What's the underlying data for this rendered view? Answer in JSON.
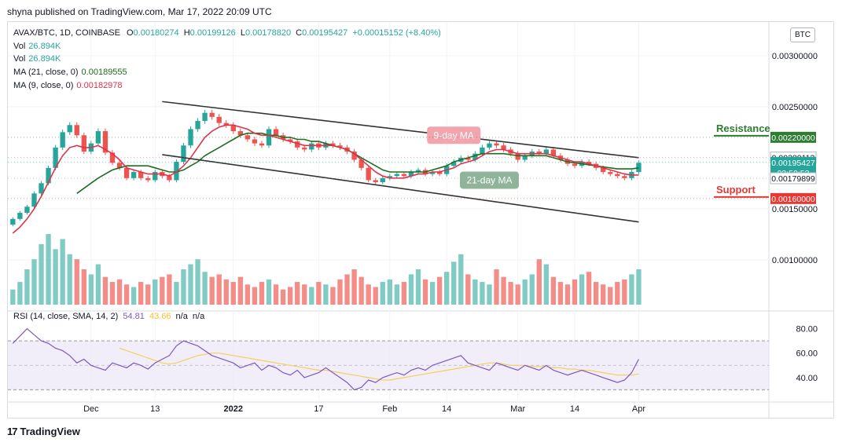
{
  "header": {
    "published": "shyna published on TradingView.com, Mar 17, 2022 20:09 UTC"
  },
  "symbol": {
    "name": "AVAX/BTC, 1D, COINBASE",
    "o_label": "O",
    "o": "0.00180274",
    "h_label": "H",
    "h": "0.00199126",
    "l_label": "L",
    "l": "0.00178820",
    "c_label": "C",
    "c": "0.00195427",
    "change": "+0.00015152 (+8.40%)"
  },
  "legend": [
    {
      "label": "Vol",
      "value": "26.894K",
      "color": "#26a69a"
    },
    {
      "label": "Vol",
      "value": "26.894K",
      "color": "#26a69a"
    },
    {
      "label": "MA (21, close, 0)",
      "value": "0.00189555",
      "color": "#1e6e1e"
    },
    {
      "label": "MA (9, close, 0)",
      "value": "0.00182978",
      "color": "#e0324b"
    }
  ],
  "rsi_legend": {
    "label": "RSI (14, close, SMA, 14, 2)",
    "rsi": "54.81",
    "sma": "43.66",
    "na1": "n/a",
    "na2": "n/a"
  },
  "currency_button": "BTC",
  "footer": {
    "brand": "TradingView",
    "mark": "17"
  },
  "chart_data": {
    "type": "candlestick",
    "title": "AVAX/BTC, 1D, COINBASE",
    "y_ticks": [
      "0.00300000",
      "0.00250000",
      "0.00150000",
      "0.00100000"
    ],
    "y_tick_values": [
      0.003,
      0.0025,
      0.0015,
      0.001
    ],
    "ylim": [
      0.00056,
      0.00333
    ],
    "x_ticks": [
      "Dec",
      "13",
      "2022",
      "17",
      "Feb",
      "14",
      "Mar",
      "14",
      "Apr"
    ],
    "x_tick_bars": [
      11,
      20,
      31,
      43,
      53,
      61,
      71,
      79,
      88
    ],
    "closes": [
      0.0014,
      0.00146,
      0.00152,
      0.00165,
      0.00175,
      0.0019,
      0.0021,
      0.00225,
      0.00232,
      0.00222,
      0.00206,
      0.00214,
      0.00226,
      0.00205,
      0.00195,
      0.0019,
      0.0018,
      0.00186,
      0.0018,
      0.00178,
      0.00186,
      0.00182,
      0.00178,
      0.00196,
      0.00212,
      0.00228,
      0.00236,
      0.00244,
      0.0024,
      0.00234,
      0.00232,
      0.00226,
      0.00222,
      0.00218,
      0.00214,
      0.00212,
      0.00228,
      0.00222,
      0.00218,
      0.00216,
      0.0021,
      0.00208,
      0.00214,
      0.0021,
      0.00214,
      0.00212,
      0.0021,
      0.00206,
      0.00198,
      0.0019,
      0.00178,
      0.00176,
      0.0018,
      0.00182,
      0.00184,
      0.00182,
      0.00186,
      0.00188,
      0.00184,
      0.00186,
      0.00184,
      0.00192,
      0.00196,
      0.002,
      0.00198,
      0.00204,
      0.0021,
      0.00214,
      0.00212,
      0.00208,
      0.00204,
      0.00198,
      0.00202,
      0.00206,
      0.00204,
      0.00208,
      0.00202,
      0.00198,
      0.00194,
      0.00192,
      0.00196,
      0.00194,
      0.0019,
      0.00186,
      0.00184,
      0.00182,
      0.0018,
      0.00186,
      0.00195
    ],
    "volumes": [
      6,
      9,
      14,
      18,
      24,
      28,
      22,
      26,
      20,
      18,
      14,
      12,
      16,
      11,
      9,
      10,
      8,
      7,
      9,
      8,
      10,
      11,
      12,
      9,
      14,
      16,
      18,
      13,
      11,
      12,
      10,
      9,
      11,
      8,
      7,
      9,
      10,
      8,
      6,
      7,
      9,
      8,
      7,
      9,
      8,
      7,
      10,
      12,
      14,
      11,
      8,
      7,
      9,
      10,
      8,
      9,
      12,
      14,
      10,
      9,
      11,
      13,
      17,
      20,
      12,
      10,
      9,
      8,
      14,
      11,
      9,
      8,
      10,
      12,
      18,
      16,
      11,
      9,
      8,
      10,
      12,
      13,
      9,
      8,
      7,
      9,
      10,
      12,
      14
    ],
    "ma9": [
      0.00126,
      0.00132,
      0.0014,
      0.0015,
      0.00162,
      0.00176,
      0.0019,
      0.00202,
      0.0021,
      0.00212,
      0.0021,
      0.0021,
      0.00212,
      0.00208,
      0.00204,
      0.00198,
      0.0019,
      0.00188,
      0.00186,
      0.00184,
      0.00184,
      0.00184,
      0.00182,
      0.00186,
      0.00192,
      0.002,
      0.0021,
      0.0022,
      0.00226,
      0.0023,
      0.00232,
      0.00232,
      0.0023,
      0.00228,
      0.00224,
      0.00222,
      0.00222,
      0.0022,
      0.00218,
      0.00216,
      0.00214,
      0.00212,
      0.00212,
      0.00212,
      0.00212,
      0.00212,
      0.0021,
      0.00208,
      0.00204,
      0.00198,
      0.00192,
      0.00186,
      0.00182,
      0.0018,
      0.0018,
      0.0018,
      0.00182,
      0.00184,
      0.00184,
      0.00186,
      0.00186,
      0.00188,
      0.0019,
      0.00194,
      0.00196,
      0.00198,
      0.00202,
      0.00206,
      0.00208,
      0.00208,
      0.00206,
      0.00204,
      0.00204,
      0.00204,
      0.00204,
      0.00204,
      0.00202,
      0.002,
      0.00198,
      0.00196,
      0.00196,
      0.00194,
      0.00192,
      0.0019,
      0.00188,
      0.00186,
      0.00184,
      0.00183,
      0.00183
    ],
    "ma21": [
      null,
      null,
      null,
      null,
      null,
      null,
      null,
      null,
      null,
      0.00165,
      0.0017,
      0.00175,
      0.0018,
      0.00184,
      0.00188,
      0.0019,
      0.00192,
      0.00192,
      0.00192,
      0.00192,
      0.0019,
      0.00188,
      0.00186,
      0.00186,
      0.00188,
      0.00192,
      0.00196,
      0.00202,
      0.00206,
      0.0021,
      0.00214,
      0.00218,
      0.00222,
      0.00224,
      0.00224,
      0.00224,
      0.00222,
      0.00222,
      0.0022,
      0.0022,
      0.00218,
      0.00218,
      0.00216,
      0.00216,
      0.00214,
      0.00212,
      0.0021,
      0.00208,
      0.00204,
      0.002,
      0.00196,
      0.00192,
      0.00188,
      0.00186,
      0.00186,
      0.00186,
      0.00186,
      0.00186,
      0.00186,
      0.00188,
      0.0019,
      0.00192,
      0.00196,
      0.00198,
      0.002,
      0.00202,
      0.00204,
      0.00204,
      0.00204,
      0.00204,
      0.00203,
      0.00202,
      0.00202,
      0.00202,
      0.00202,
      0.00202,
      0.002,
      0.00198,
      0.00196,
      0.00195,
      0.00194,
      0.00193,
      0.00192,
      0.00191,
      0.0019,
      0.00189,
      0.00189,
      0.00189,
      0.0019
    ],
    "rsi": [
      68,
      74,
      80,
      75,
      70,
      68,
      64,
      62,
      58,
      52,
      55,
      50,
      48,
      46,
      52,
      50,
      48,
      52,
      50,
      47,
      52,
      55,
      58,
      66,
      70,
      68,
      66,
      62,
      58,
      56,
      54,
      52,
      48,
      50,
      52,
      46,
      50,
      48,
      44,
      42,
      46,
      40,
      42,
      44,
      48,
      44,
      40,
      36,
      30,
      32,
      38,
      36,
      40,
      42,
      44,
      42,
      46,
      48,
      46,
      50,
      52,
      54,
      56,
      58,
      52,
      50,
      48,
      46,
      52,
      50,
      48,
      46,
      50,
      48,
      46,
      50,
      46,
      44,
      42,
      44,
      46,
      44,
      42,
      40,
      38,
      36,
      38,
      44,
      55
    ],
    "rsi_sma": [
      null,
      null,
      null,
      null,
      null,
      null,
      null,
      null,
      null,
      null,
      null,
      null,
      null,
      null,
      null,
      64,
      62,
      60,
      58,
      56,
      54,
      52,
      51,
      52,
      54,
      56,
      58,
      59,
      60,
      60,
      59,
      58,
      57,
      56,
      55,
      54,
      53,
      52,
      51,
      50,
      49,
      48,
      47,
      46,
      46,
      45,
      44,
      43,
      42,
      41,
      40,
      39,
      38,
      38,
      39,
      40,
      41,
      42,
      43,
      44,
      45,
      46,
      47,
      48,
      49,
      50,
      51,
      52,
      52,
      51,
      50,
      50,
      50,
      49,
      49,
      49,
      48,
      48,
      47,
      47,
      46,
      46,
      45,
      44,
      43,
      42,
      42,
      42,
      43
    ],
    "rsi_ticks": [
      "80.00",
      "60.00",
      "40.00"
    ],
    "rsi_tick_values": [
      80,
      60,
      40
    ],
    "rsi_band": [
      30,
      70
    ],
    "price_tags": [
      {
        "text": "0.00220000",
        "value": 0.0022,
        "color": "#2e7d32",
        "filled": true
      },
      {
        "text": "0.00200113",
        "value": 0.00200113,
        "color": "#ffffff",
        "filled": false
      },
      {
        "text": "0.00195427",
        "value": 0.00195427,
        "color": "#26a69a",
        "filled": true,
        "sub": "03:50:53"
      },
      {
        "text": "0.00179899",
        "value": 0.00179899,
        "color": "#ffffff",
        "filled": false
      },
      {
        "text": "0.00160000",
        "value": 0.0016,
        "color": "#e53935",
        "filled": true
      }
    ],
    "levels": [
      {
        "name": "Resistance",
        "value": 0.0022,
        "color": "#2e7d32"
      },
      {
        "name": "Support",
        "value": 0.0016,
        "color": "#e53935"
      }
    ],
    "annotations": [
      {
        "text": "9-day MA",
        "color": "#f4a4ac",
        "bar": 62,
        "value": 0.00222
      },
      {
        "text": "21-day MA",
        "color": "#8fb49a",
        "bar": 67,
        "value": 0.00178
      }
    ],
    "trend_channel": {
      "upper": [
        [
          21,
          0.00255
        ],
        [
          88,
          0.002
        ]
      ],
      "lower": [
        [
          21,
          0.00203
        ],
        [
          88,
          0.00137
        ]
      ]
    },
    "grid": true
  }
}
